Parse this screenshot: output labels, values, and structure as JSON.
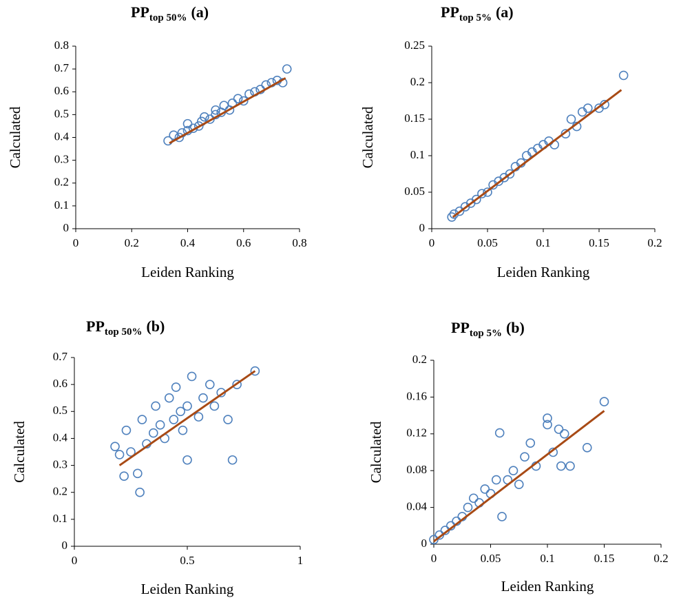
{
  "chart_data": [
    {
      "type": "scatter",
      "title": "PP",
      "title_subscript": "top 50%",
      "title_suffix": "(a)",
      "x_label": "Leiden Ranking",
      "y_label": "Calculated",
      "xlim": [
        0,
        0.8
      ],
      "xticks": [
        0,
        0.2,
        0.4,
        0.6,
        0.8
      ],
      "ylim": [
        0,
        0.8
      ],
      "yticks": [
        0,
        0.1,
        0.2,
        0.3,
        0.4,
        0.5,
        0.6,
        0.7,
        0.8
      ],
      "color": "#4f81bd",
      "x": [
        0.33,
        0.35,
        0.37,
        0.38,
        0.4,
        0.4,
        0.42,
        0.44,
        0.45,
        0.46,
        0.48,
        0.5,
        0.5,
        0.52,
        0.53,
        0.55,
        0.56,
        0.58,
        0.6,
        0.62,
        0.64,
        0.66,
        0.68,
        0.7,
        0.72,
        0.74,
        0.755
      ],
      "y": [
        0.385,
        0.41,
        0.4,
        0.42,
        0.43,
        0.46,
        0.44,
        0.45,
        0.47,
        0.49,
        0.48,
        0.5,
        0.52,
        0.51,
        0.54,
        0.52,
        0.55,
        0.57,
        0.56,
        0.59,
        0.6,
        0.61,
        0.63,
        0.64,
        0.65,
        0.64,
        0.7
      ],
      "trendline": {
        "color": "#a84a15",
        "x": [
          0.335,
          0.75
        ],
        "y": [
          0.375,
          0.66
        ]
      }
    },
    {
      "type": "scatter",
      "title": "PP",
      "title_subscript": "top 5%",
      "title_suffix": "(a)",
      "x_label": "Leiden Ranking",
      "y_label": "Calculated",
      "xlim": [
        0,
        0.2
      ],
      "xticks": [
        0,
        0.05,
        0.1,
        0.15,
        0.2
      ],
      "ylim": [
        0,
        0.25
      ],
      "yticks": [
        0,
        0.05,
        0.1,
        0.15,
        0.2,
        0.25
      ],
      "color": "#4f81bd",
      "x": [
        0.018,
        0.02,
        0.025,
        0.03,
        0.035,
        0.04,
        0.045,
        0.05,
        0.055,
        0.06,
        0.065,
        0.07,
        0.075,
        0.08,
        0.085,
        0.09,
        0.095,
        0.1,
        0.105,
        0.11,
        0.12,
        0.125,
        0.13,
        0.135,
        0.14,
        0.15,
        0.155,
        0.172
      ],
      "y": [
        0.016,
        0.02,
        0.024,
        0.03,
        0.035,
        0.04,
        0.048,
        0.05,
        0.06,
        0.065,
        0.07,
        0.075,
        0.085,
        0.09,
        0.1,
        0.105,
        0.11,
        0.115,
        0.12,
        0.115,
        0.13,
        0.15,
        0.14,
        0.16,
        0.165,
        0.165,
        0.17,
        0.21
      ],
      "trendline": {
        "color": "#a84a15",
        "x": [
          0.019,
          0.17
        ],
        "y": [
          0.016,
          0.19
        ]
      }
    },
    {
      "type": "scatter",
      "title": "PP",
      "title_subscript": "top 50%",
      "title_suffix": "(b)",
      "x_label": "Leiden Ranking",
      "y_label": "Calculated",
      "xlim": [
        0,
        1
      ],
      "xticks": [
        0,
        0.5,
        1
      ],
      "ylim": [
        0,
        0.7
      ],
      "yticks": [
        0,
        0.1,
        0.2,
        0.3,
        0.4,
        0.5,
        0.6,
        0.7
      ],
      "color": "#4f81bd",
      "x": [
        0.18,
        0.2,
        0.22,
        0.23,
        0.25,
        0.28,
        0.29,
        0.3,
        0.32,
        0.35,
        0.36,
        0.38,
        0.4,
        0.42,
        0.44,
        0.45,
        0.47,
        0.48,
        0.5,
        0.5,
        0.52,
        0.55,
        0.57,
        0.6,
        0.62,
        0.65,
        0.68,
        0.7,
        0.72,
        0.8
      ],
      "y": [
        0.37,
        0.34,
        0.26,
        0.43,
        0.35,
        0.27,
        0.2,
        0.47,
        0.38,
        0.42,
        0.52,
        0.45,
        0.4,
        0.55,
        0.47,
        0.59,
        0.5,
        0.43,
        0.52,
        0.32,
        0.63,
        0.48,
        0.55,
        0.6,
        0.52,
        0.57,
        0.47,
        0.32,
        0.6,
        0.65
      ],
      "trendline": {
        "color": "#a84a15",
        "x": [
          0.2,
          0.8
        ],
        "y": [
          0.3,
          0.65
        ]
      }
    },
    {
      "type": "scatter",
      "title": "PP",
      "title_subscript": "top 5%",
      "title_suffix": "(b)",
      "x_label": "Leiden Ranking",
      "y_label": "Calculated",
      "xlim": [
        0,
        0.2
      ],
      "xticks": [
        0,
        0.05,
        0.1,
        0.15,
        0.2
      ],
      "ylim": [
        0,
        0.2
      ],
      "yticks": [
        0,
        0.04,
        0.08,
        0.12,
        0.16,
        0.2
      ],
      "color": "#4f81bd",
      "x": [
        0,
        0.005,
        0.01,
        0.015,
        0.02,
        0.025,
        0.03,
        0.035,
        0.04,
        0.045,
        0.05,
        0.055,
        0.058,
        0.06,
        0.065,
        0.07,
        0.075,
        0.08,
        0.085,
        0.09,
        0.1,
        0.1,
        0.105,
        0.11,
        0.112,
        0.115,
        0.12,
        0.135,
        0.15
      ],
      "y": [
        0.005,
        0.01,
        0.015,
        0.02,
        0.025,
        0.03,
        0.04,
        0.05,
        0.045,
        0.06,
        0.055,
        0.07,
        0.121,
        0.03,
        0.07,
        0.08,
        0.065,
        0.095,
        0.11,
        0.085,
        0.13,
        0.137,
        0.1,
        0.125,
        0.085,
        0.12,
        0.085,
        0.105,
        0.155
      ],
      "trendline": {
        "color": "#a84a15",
        "x": [
          0,
          0.15
        ],
        "y": [
          0.003,
          0.145
        ]
      }
    }
  ]
}
